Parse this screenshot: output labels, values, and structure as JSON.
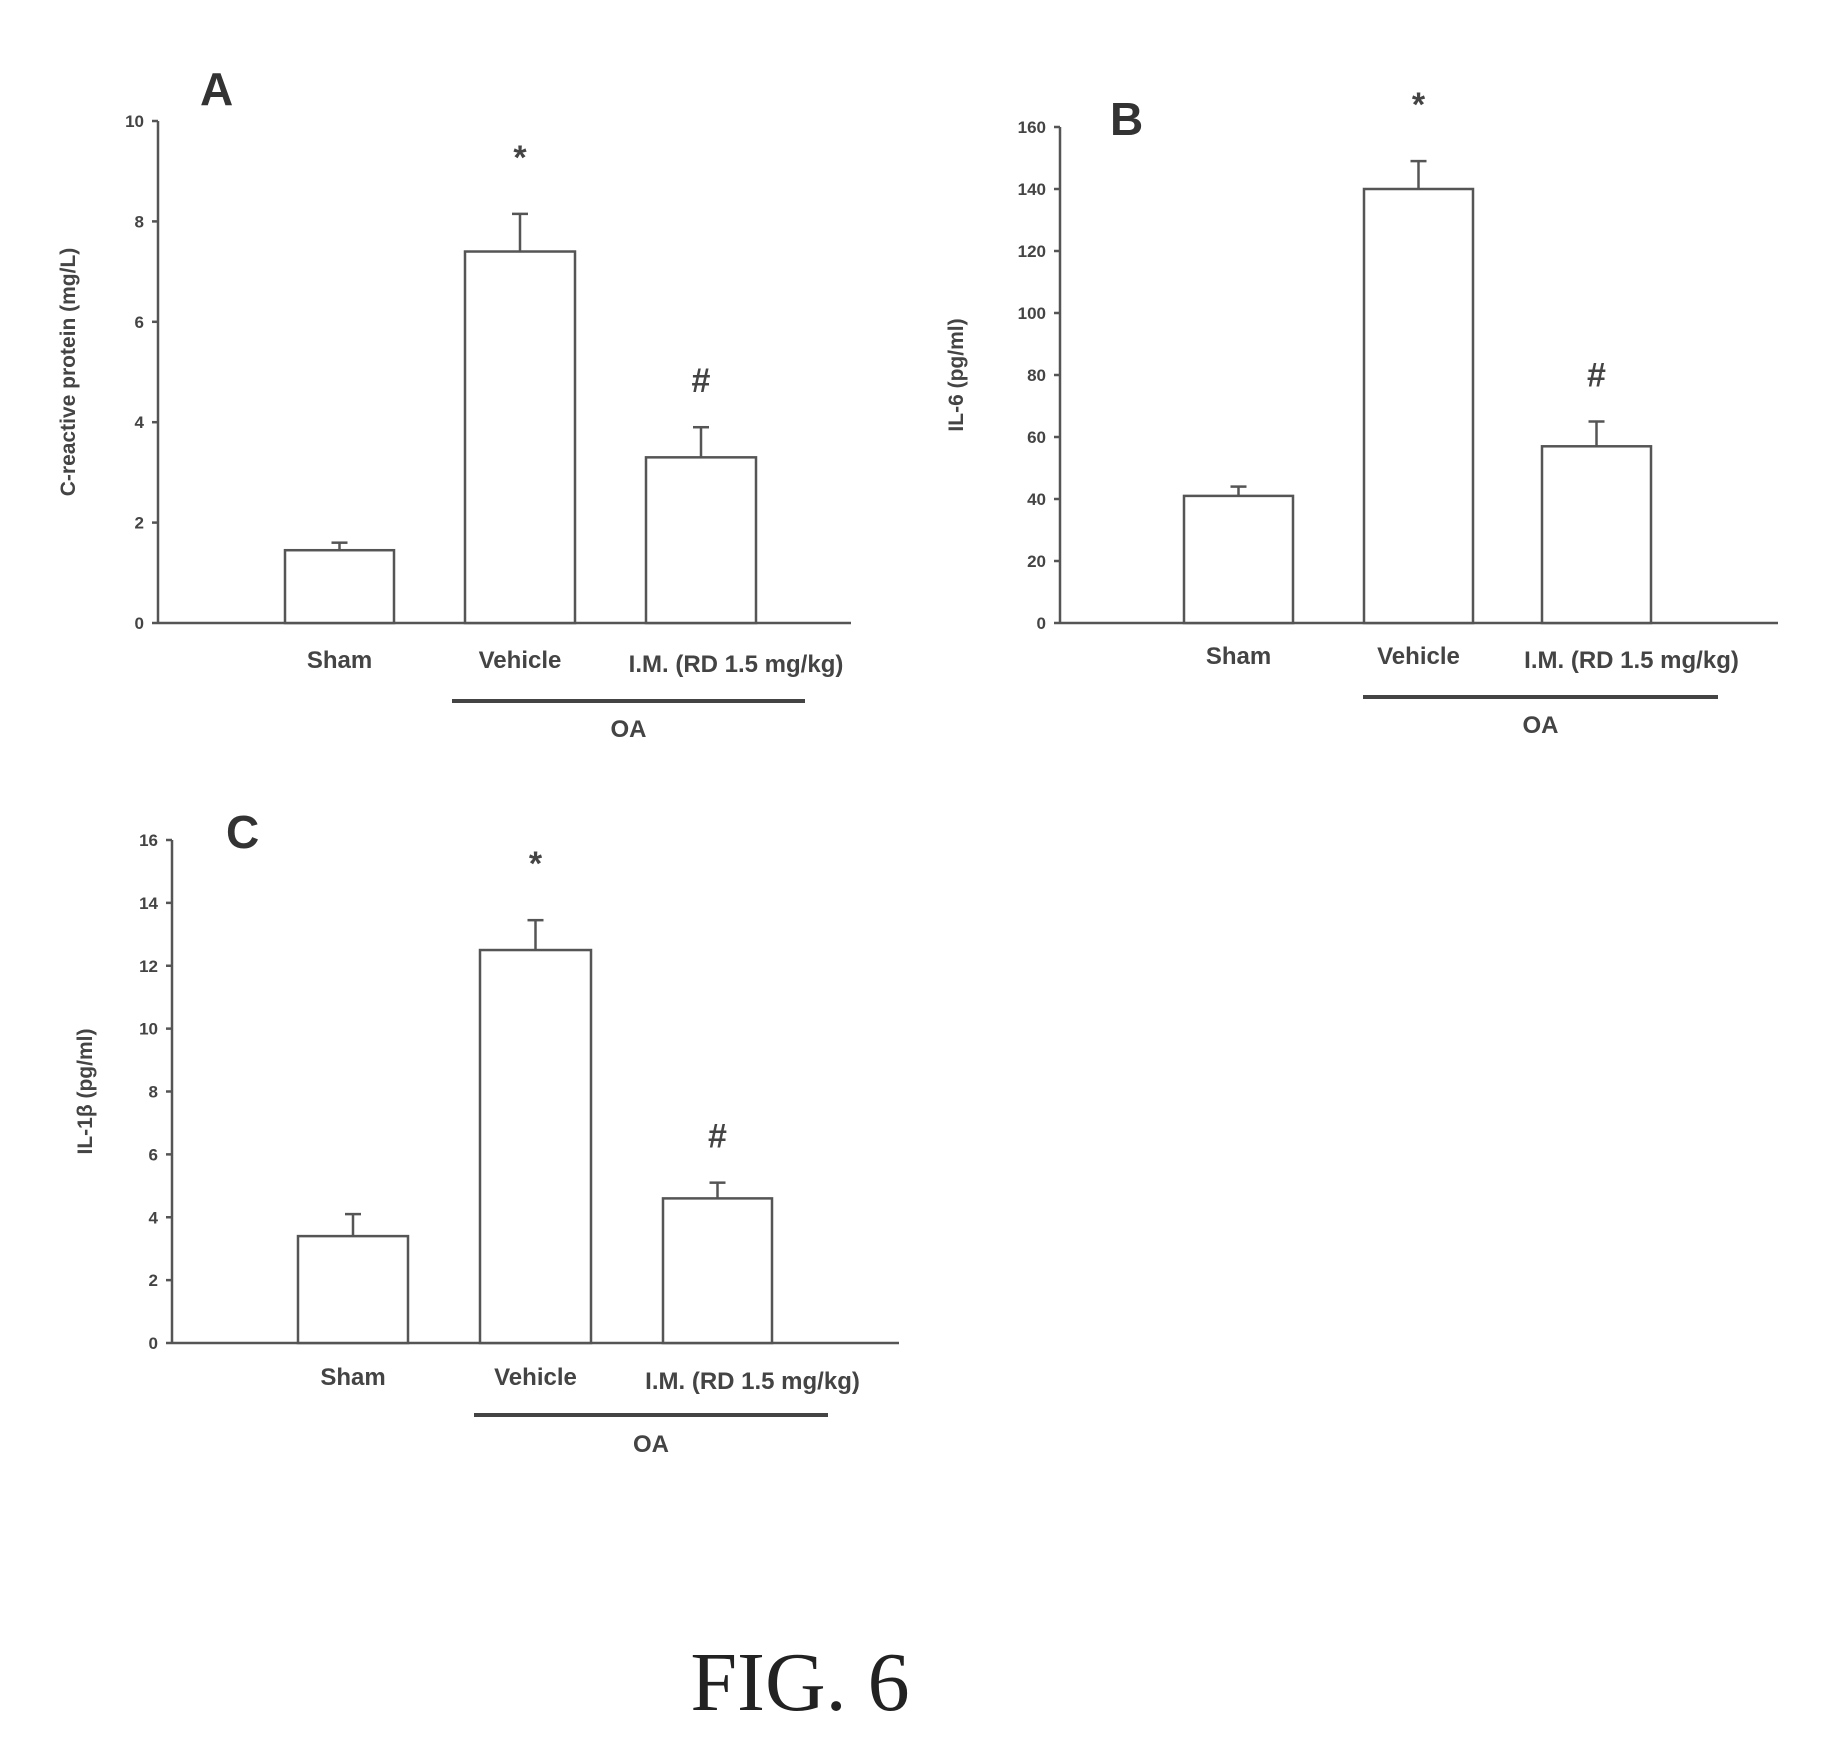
{
  "figure_label": "FIG. 6",
  "chart_data": [
    {
      "type": "bar",
      "panel": "A",
      "title": "",
      "ylabel": "C-reactive protein (mg/L)",
      "xlabel": "",
      "ylim": [
        0,
        10
      ],
      "yticks": [
        "0",
        "2",
        "4",
        "6",
        "8",
        "10"
      ],
      "categories": [
        "Sham",
        "Vehicle",
        "I.M. (RD 1.5 mg/kg)"
      ],
      "values": [
        1.45,
        7.4,
        3.3
      ],
      "errors": [
        0.15,
        0.75,
        0.6
      ],
      "significance": [
        "",
        "*",
        "#"
      ],
      "group_label": "OA",
      "grid": false
    },
    {
      "type": "bar",
      "panel": "B",
      "title": "",
      "ylabel": "IL-6 (pg/ml)",
      "xlabel": "",
      "ylim": [
        0,
        160
      ],
      "yticks": [
        "0",
        "20",
        "40",
        "60",
        "80",
        "100",
        "120",
        "140",
        "160"
      ],
      "categories": [
        "Sham",
        "Vehicle",
        "I.M. (RD 1.5 mg/kg)"
      ],
      "values": [
        41,
        140,
        57
      ],
      "errors": [
        3,
        9,
        8
      ],
      "significance": [
        "",
        "*",
        "#"
      ],
      "group_label": "OA",
      "grid": false
    },
    {
      "type": "bar",
      "panel": "C",
      "title": "",
      "ylabel": "IL-1β (pg/ml)",
      "xlabel": "",
      "ylim": [
        0,
        16
      ],
      "yticks": [
        "0",
        "2",
        "4",
        "6",
        "8",
        "10",
        "12",
        "14",
        "16"
      ],
      "categories": [
        "Sham",
        "Vehicle",
        "I.M. (RD 1.5 mg/kg)"
      ],
      "values": [
        3.4,
        12.5,
        4.6
      ],
      "errors": [
        0.7,
        0.95,
        0.5
      ],
      "significance": [
        "",
        "*",
        "#"
      ],
      "group_label": "OA",
      "grid": false
    }
  ]
}
